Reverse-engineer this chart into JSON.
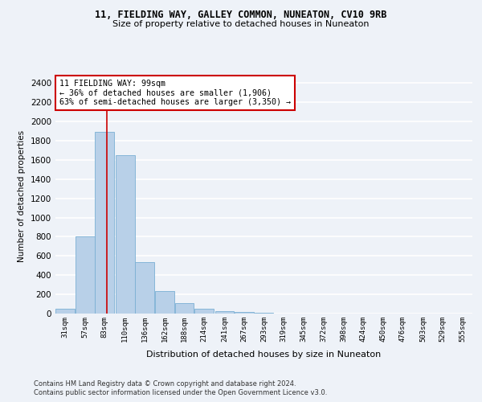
{
  "title1": "11, FIELDING WAY, GALLEY COMMON, NUNEATON, CV10 9RB",
  "title2": "Size of property relative to detached houses in Nuneaton",
  "xlabel": "Distribution of detached houses by size in Nuneaton",
  "ylabel": "Number of detached properties",
  "bin_labels": [
    "31sqm",
    "57sqm",
    "83sqm",
    "110sqm",
    "136sqm",
    "162sqm",
    "188sqm",
    "214sqm",
    "241sqm",
    "267sqm",
    "293sqm",
    "319sqm",
    "345sqm",
    "372sqm",
    "398sqm",
    "424sqm",
    "450sqm",
    "476sqm",
    "503sqm",
    "529sqm",
    "555sqm"
  ],
  "bin_left_edges": [
    31,
    57,
    83,
    110,
    136,
    162,
    188,
    214,
    241,
    267,
    293,
    319,
    345,
    372,
    398,
    424,
    450,
    476,
    503,
    529,
    555
  ],
  "bar_heights": [
    50,
    800,
    1890,
    1650,
    535,
    235,
    105,
    48,
    27,
    15,
    5,
    0,
    0,
    0,
    0,
    0,
    0,
    0,
    0,
    0,
    0
  ],
  "bar_color": "#b8d0e8",
  "bar_edge_color": "#7aafd4",
  "property_line_x": 99,
  "annotation_line1": "11 FIELDING WAY: 99sqm",
  "annotation_line2": "← 36% of detached houses are smaller (1,906)",
  "annotation_line3": "63% of semi-detached houses are larger (3,350) →",
  "annotation_box_facecolor": "#ffffff",
  "annotation_border_color": "#cc0000",
  "line_color": "#cc0000",
  "ylim": [
    0,
    2450
  ],
  "yticks": [
    0,
    200,
    400,
    600,
    800,
    1000,
    1200,
    1400,
    1600,
    1800,
    2000,
    2200,
    2400
  ],
  "footer1": "Contains HM Land Registry data © Crown copyright and database right 2024.",
  "footer2": "Contains public sector information licensed under the Open Government Licence v3.0.",
  "background_color": "#eef2f8",
  "grid_color": "#ffffff"
}
